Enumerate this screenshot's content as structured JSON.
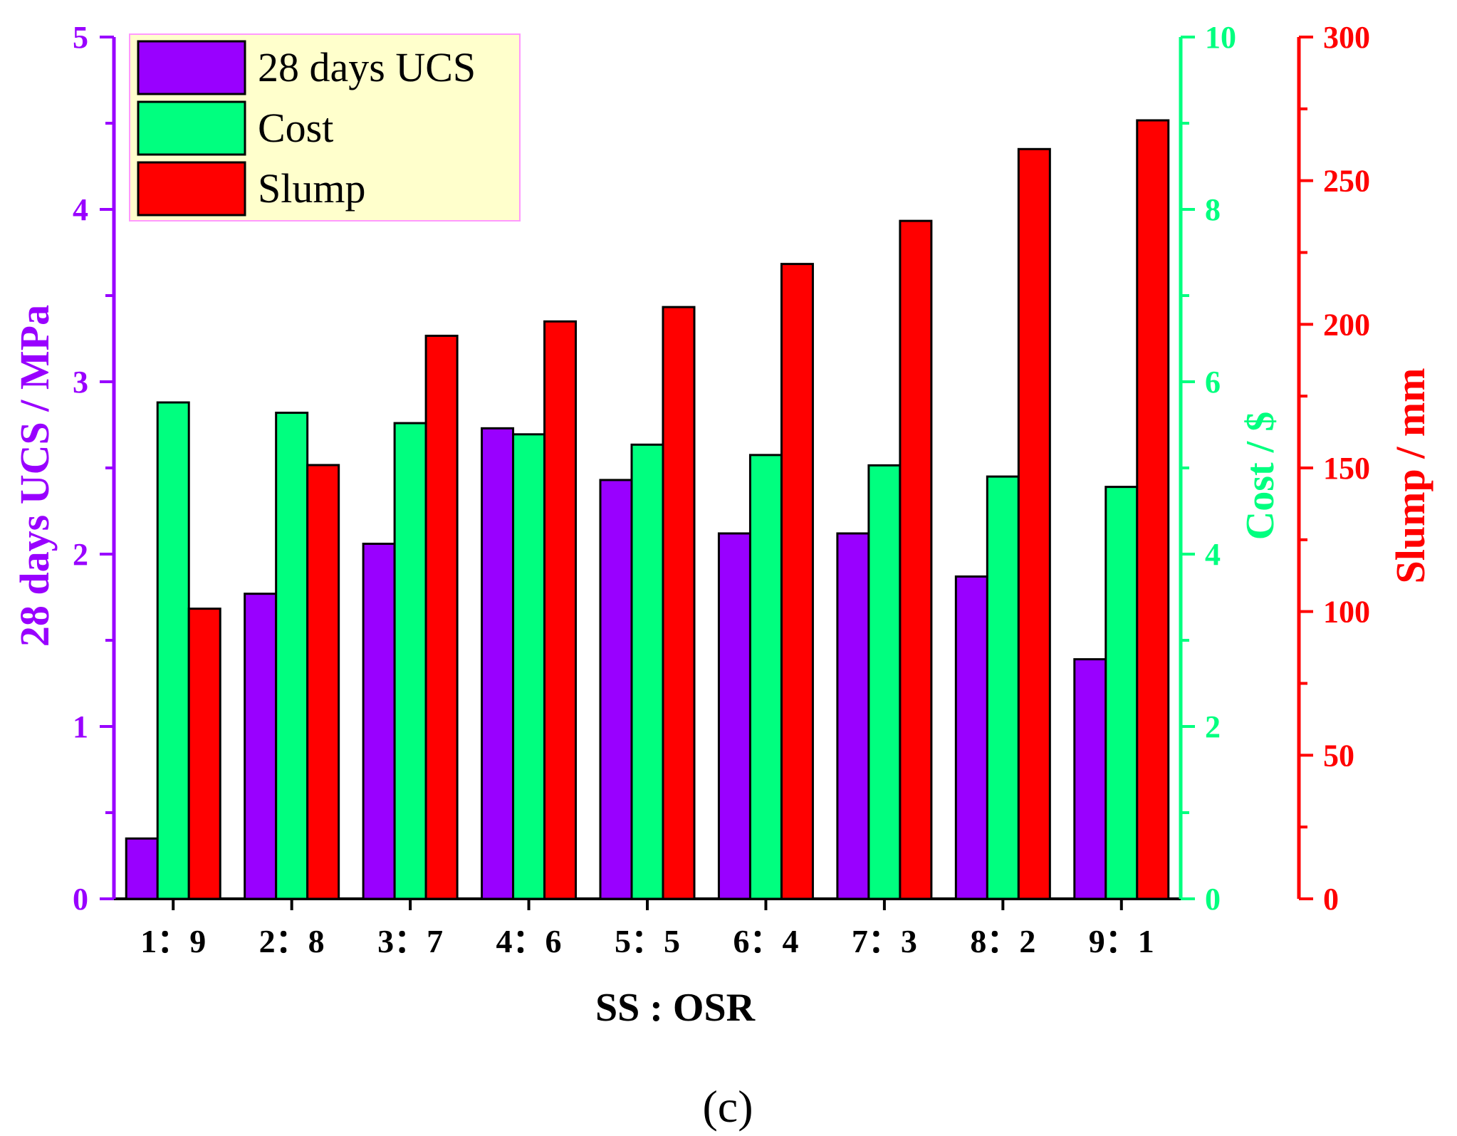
{
  "figure_label": "(c)",
  "chart_data": {
    "type": "bar",
    "xlabel": "SS : OSR",
    "categories": [
      "1：9",
      "2：8",
      "3：7",
      "4：6",
      "5：5",
      "6：4",
      "7：3",
      "8：2",
      "9：1"
    ],
    "series": [
      {
        "name": "28 days UCS",
        "axis": "left",
        "color": "#9900ff",
        "values": [
          0.35,
          1.77,
          2.06,
          2.73,
          2.43,
          2.12,
          2.12,
          1.87,
          1.39
        ]
      },
      {
        "name": "Cost",
        "axis": "right1",
        "color": "#00ff7f",
        "values": [
          5.76,
          5.64,
          5.52,
          5.39,
          5.27,
          5.15,
          5.03,
          4.9,
          4.78
        ]
      },
      {
        "name": "Slump",
        "axis": "right2",
        "color": "#ff0000",
        "values": [
          101,
          151,
          196,
          201,
          206,
          221,
          236,
          261,
          271
        ]
      }
    ],
    "axes": {
      "left": {
        "label": "28 days UCS / MPa",
        "color": "#9900ff",
        "ylim": [
          0,
          5
        ],
        "ticks": [
          0,
          1,
          2,
          3,
          4,
          5
        ],
        "minor_step": 0.5
      },
      "right1": {
        "label": "Cost / $",
        "color": "#00ff7f",
        "ylim": [
          0,
          10
        ],
        "ticks": [
          0,
          2,
          4,
          6,
          8,
          10
        ],
        "minor_step": 1
      },
      "right2": {
        "label": "Slump / mm",
        "color": "#ff0000",
        "ylim": [
          0,
          300
        ],
        "ticks": [
          0,
          50,
          100,
          150,
          200,
          250,
          300
        ],
        "minor_step": 25
      }
    },
    "legend": {
      "position": "top-left",
      "background": "#ffffcc",
      "border": "#ff99ff"
    }
  }
}
